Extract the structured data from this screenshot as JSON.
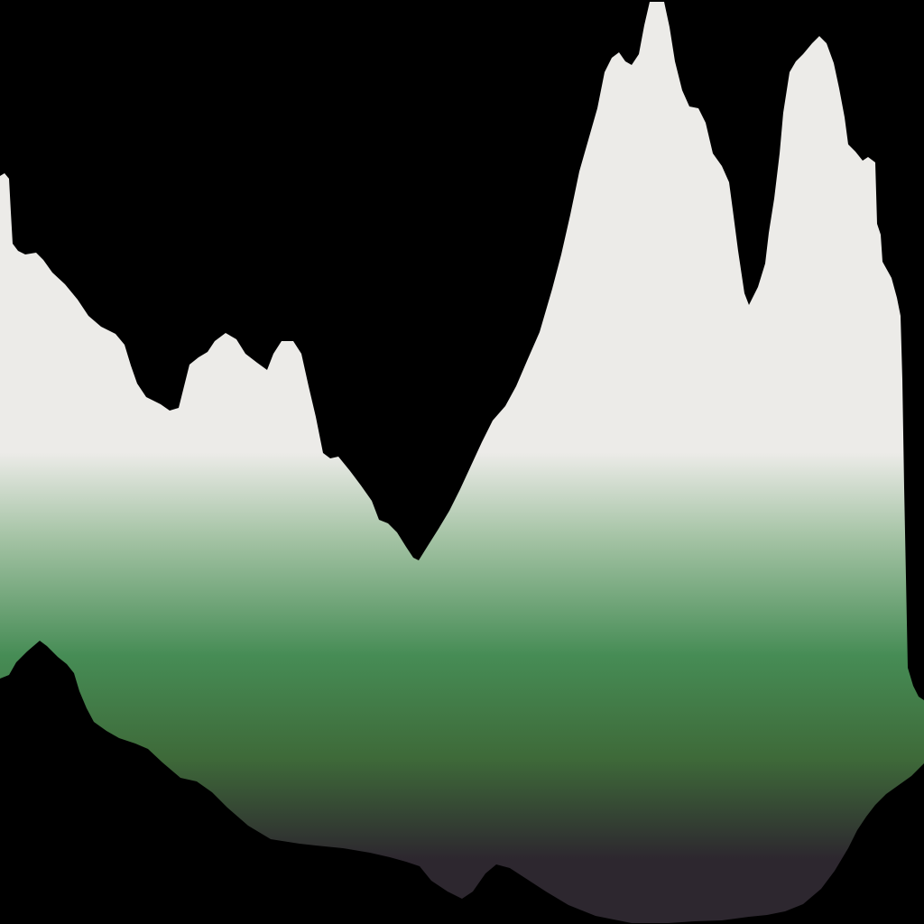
{
  "image": {
    "kind": "abstract mountain silhouette",
    "background_color": "#000000",
    "fill_gradient": [
      {
        "color": "#ecebe8"
      },
      {
        "color": "#a6c4a6"
      },
      {
        "color": "#468c55"
      },
      {
        "color": "#3e6a39"
      },
      {
        "color": "#2d272f"
      }
    ]
  }
}
